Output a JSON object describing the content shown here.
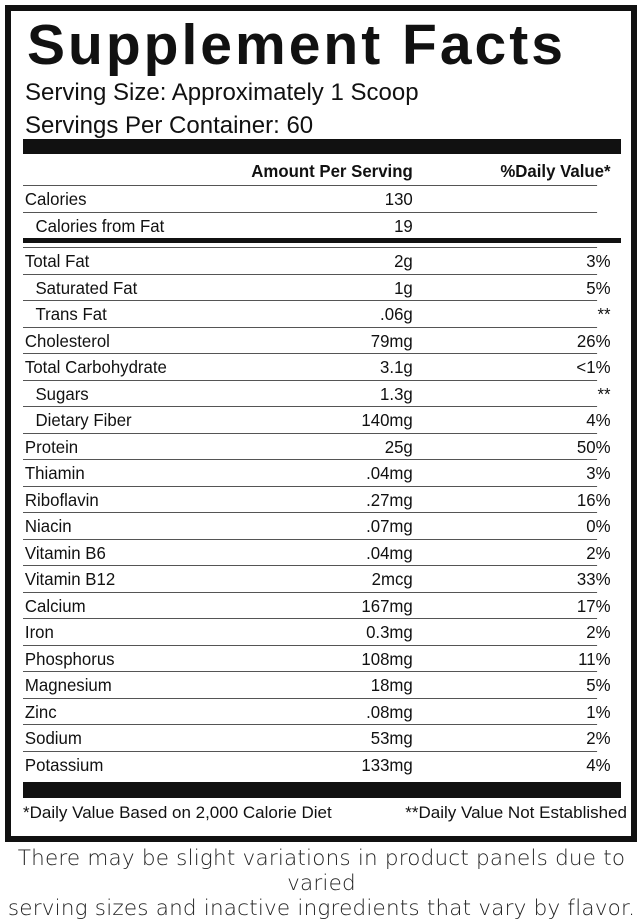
{
  "title": "Supplement Facts",
  "serving_size": "Serving Size: Approximately 1 Scoop",
  "servings_per_container": "Servings Per Container: 60",
  "columns": {
    "amount": "Amount Per Serving",
    "dv": "%Daily Value*"
  },
  "top_rows": [
    {
      "name": "Calories",
      "amount": "130",
      "dv": ""
    },
    {
      "name": "Calories from Fat",
      "amount": "19",
      "dv": "",
      "indent": true
    }
  ],
  "rows": [
    {
      "name": "Total Fat",
      "amount": "2g",
      "dv": "3%"
    },
    {
      "name": "Saturated Fat",
      "amount": "1g",
      "dv": "5%",
      "indent": true
    },
    {
      "name": "Trans Fat",
      "amount": ".06g",
      "dv": "**",
      "indent": true
    },
    {
      "name": "Cholesterol",
      "amount": "79mg",
      "dv": "26%"
    },
    {
      "name": "Total Carbohydrate",
      "amount": "3.1g",
      "dv": "<1%"
    },
    {
      "name": "Sugars",
      "amount": "1.3g",
      "dv": "**",
      "indent": true
    },
    {
      "name": "Dietary Fiber",
      "amount": "140mg",
      "dv": "4%",
      "indent": true
    },
    {
      "name": "Protein",
      "amount": "25g",
      "dv": "50%"
    },
    {
      "name": "Thiamin",
      "amount": ".04mg",
      "dv": "3%"
    },
    {
      "name": "Riboflavin",
      "amount": ".27mg",
      "dv": "16%"
    },
    {
      "name": "Niacin",
      "amount": ".07mg",
      "dv": "0%"
    },
    {
      "name": "Vitamin B6",
      "amount": ".04mg",
      "dv": "2%"
    },
    {
      "name": "Vitamin B12",
      "amount": "2mcg",
      "dv": "33%"
    },
    {
      "name": "Calcium",
      "amount": "167mg",
      "dv": "17%"
    },
    {
      "name": "Iron",
      "amount": "0.3mg",
      "dv": "2%"
    },
    {
      "name": "Phosphorus",
      "amount": "108mg",
      "dv": "11%"
    },
    {
      "name": "Magnesium",
      "amount": "18mg",
      "dv": "5%"
    },
    {
      "name": "Zinc",
      "amount": ".08mg",
      "dv": "1%"
    },
    {
      "name": "Sodium",
      "amount": "53mg",
      "dv": "2%"
    },
    {
      "name": "Potassium",
      "amount": "133mg",
      "dv": "4%"
    }
  ],
  "footnotes": {
    "left": "*Daily Value Based on 2,000 Calorie Diet",
    "right": "**Daily Value Not Established"
  },
  "disclaimer": [
    "There may be slight variations in product panels due to varied",
    "serving sizes and inactive ingredients that vary by flavor."
  ]
}
